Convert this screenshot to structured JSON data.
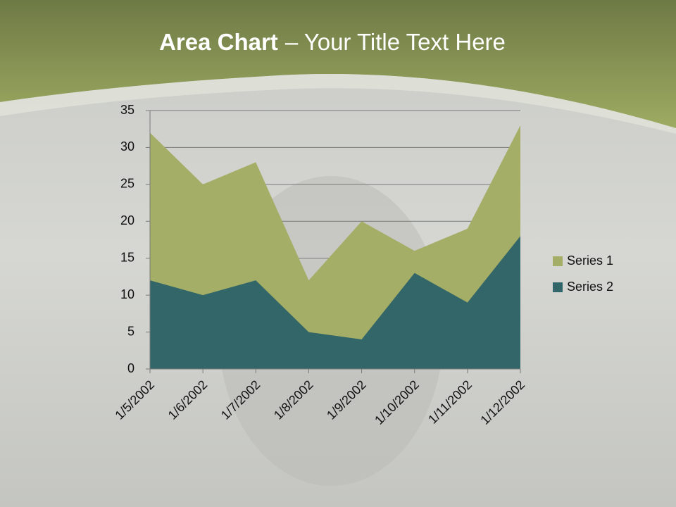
{
  "chart_data": {
    "type": "area",
    "title": {
      "bold": "Area Chart",
      "rest": "– Your Title Text Here"
    },
    "categories": [
      "1/5/2002",
      "1/6/2002",
      "1/7/2002",
      "1/8/2002",
      "1/9/2002",
      "1/10/2002",
      "1/11/2002",
      "1/12/2002"
    ],
    "series": [
      {
        "name": "Series 1",
        "color": "#a4ae66",
        "values": [
          32,
          25,
          28,
          12,
          20,
          16,
          19,
          33
        ]
      },
      {
        "name": "Series 2",
        "color": "#336668",
        "values": [
          12,
          10,
          12,
          5,
          4,
          13,
          9,
          18
        ]
      }
    ],
    "ylim": [
      0,
      35
    ],
    "yticks": [
      0,
      5,
      10,
      15,
      20,
      25,
      30,
      35
    ],
    "grid": true,
    "legend": "right"
  }
}
